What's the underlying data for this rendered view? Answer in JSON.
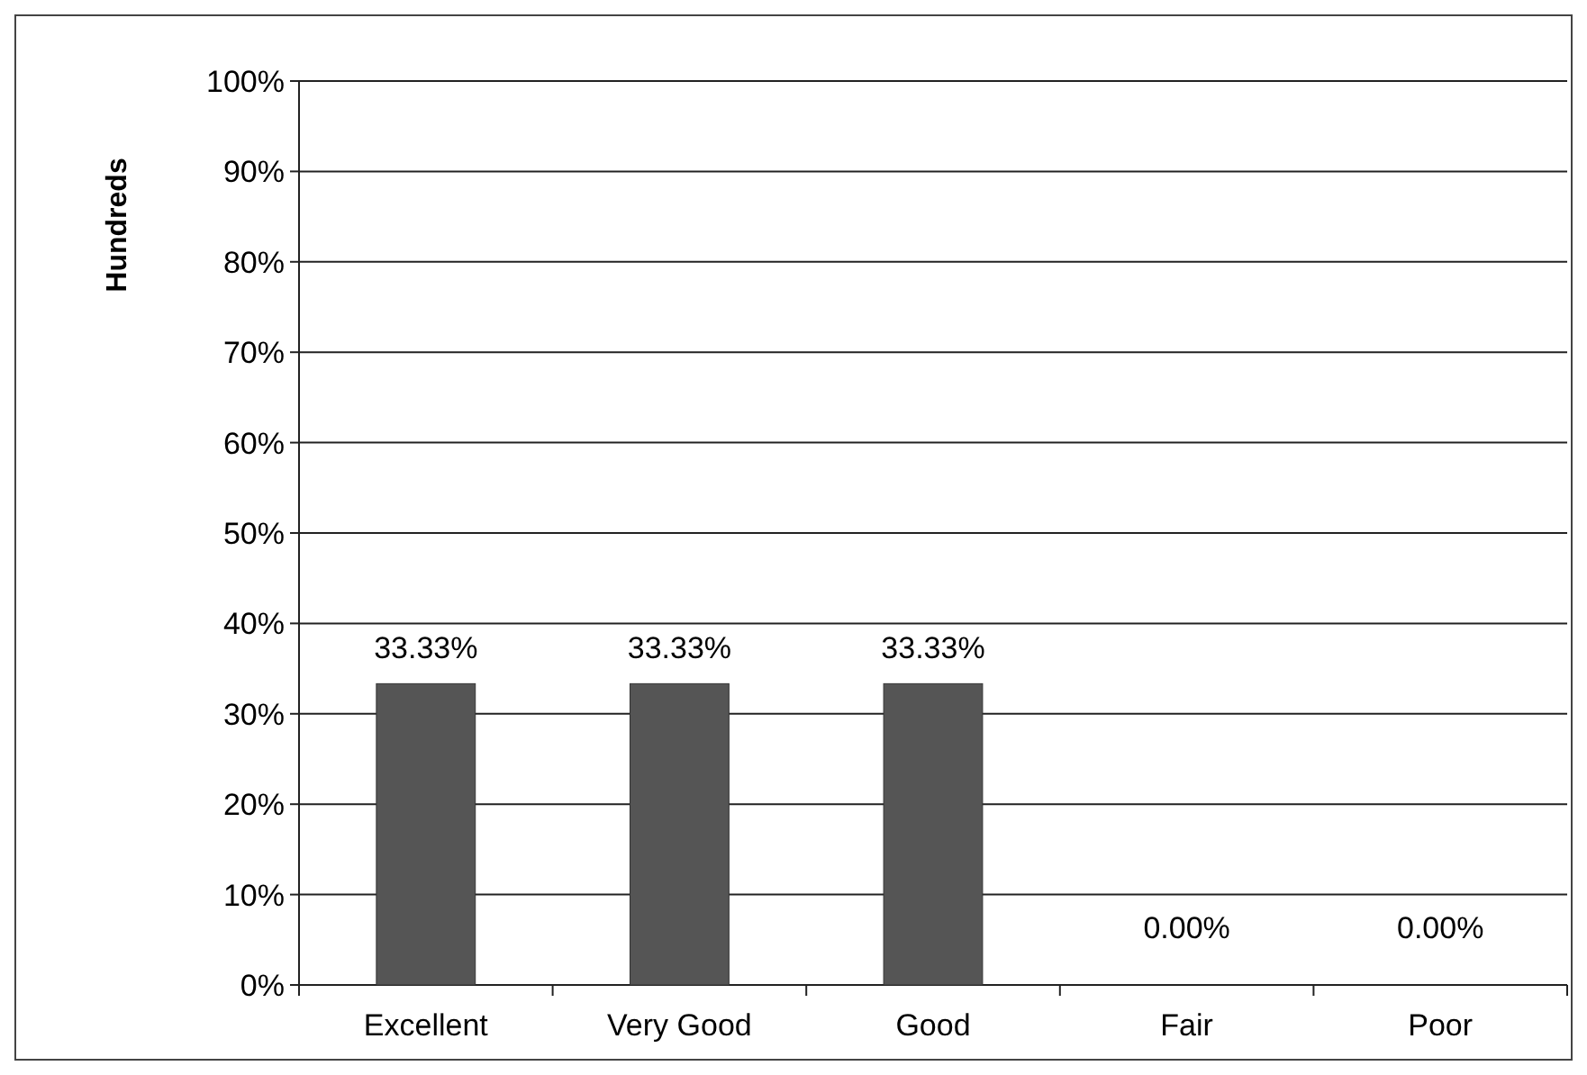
{
  "chart_data": {
    "type": "bar",
    "ylabel": "Hundreds",
    "categories": [
      "Excellent",
      "Very Good",
      "Good",
      "Fair",
      "Poor"
    ],
    "values": [
      33.33,
      33.33,
      33.33,
      0,
      0
    ],
    "value_labels": [
      "33.33%",
      "33.33%",
      "33.33%",
      "0.00%",
      "0.00%"
    ],
    "color": "#555555",
    "ylim": [
      0,
      100
    ],
    "yticks": [
      {
        "value": 0,
        "label": "0%"
      },
      {
        "value": 10,
        "label": "10%"
      },
      {
        "value": 20,
        "label": "20%"
      },
      {
        "value": 30,
        "label": "30%"
      },
      {
        "value": 40,
        "label": "40%"
      },
      {
        "value": 50,
        "label": "50%"
      },
      {
        "value": 60,
        "label": "60%"
      },
      {
        "value": 70,
        "label": "70%"
      },
      {
        "value": 80,
        "label": "80%"
      },
      {
        "value": 90,
        "label": "90%"
      },
      {
        "value": 100,
        "label": "100%"
      }
    ],
    "grid": "y"
  }
}
